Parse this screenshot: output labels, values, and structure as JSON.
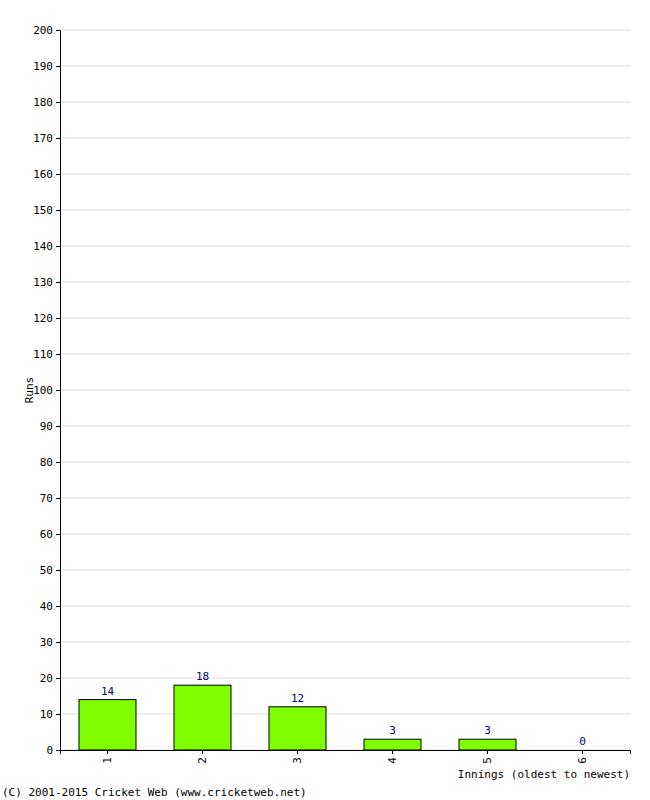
{
  "chart_data": {
    "type": "bar",
    "x_label": "Innings (oldest to newest)",
    "y_label": "Runs",
    "annotations": [
      "(C) 2001-2015 Cricket Web (www.cricketweb.net)"
    ],
    "categories": [
      "1",
      "2",
      "3",
      "4",
      "5",
      "6"
    ],
    "values": [
      14,
      18,
      12,
      3,
      3,
      0
    ],
    "color": "#80ff00",
    "ylim": [
      0,
      200
    ],
    "yticks": [
      0,
      10,
      20,
      30,
      40,
      50,
      60,
      70,
      80,
      90,
      100,
      110,
      120,
      130,
      140,
      150,
      160,
      170,
      180,
      190,
      200
    ],
    "grid": true,
    "data_labels": true
  }
}
